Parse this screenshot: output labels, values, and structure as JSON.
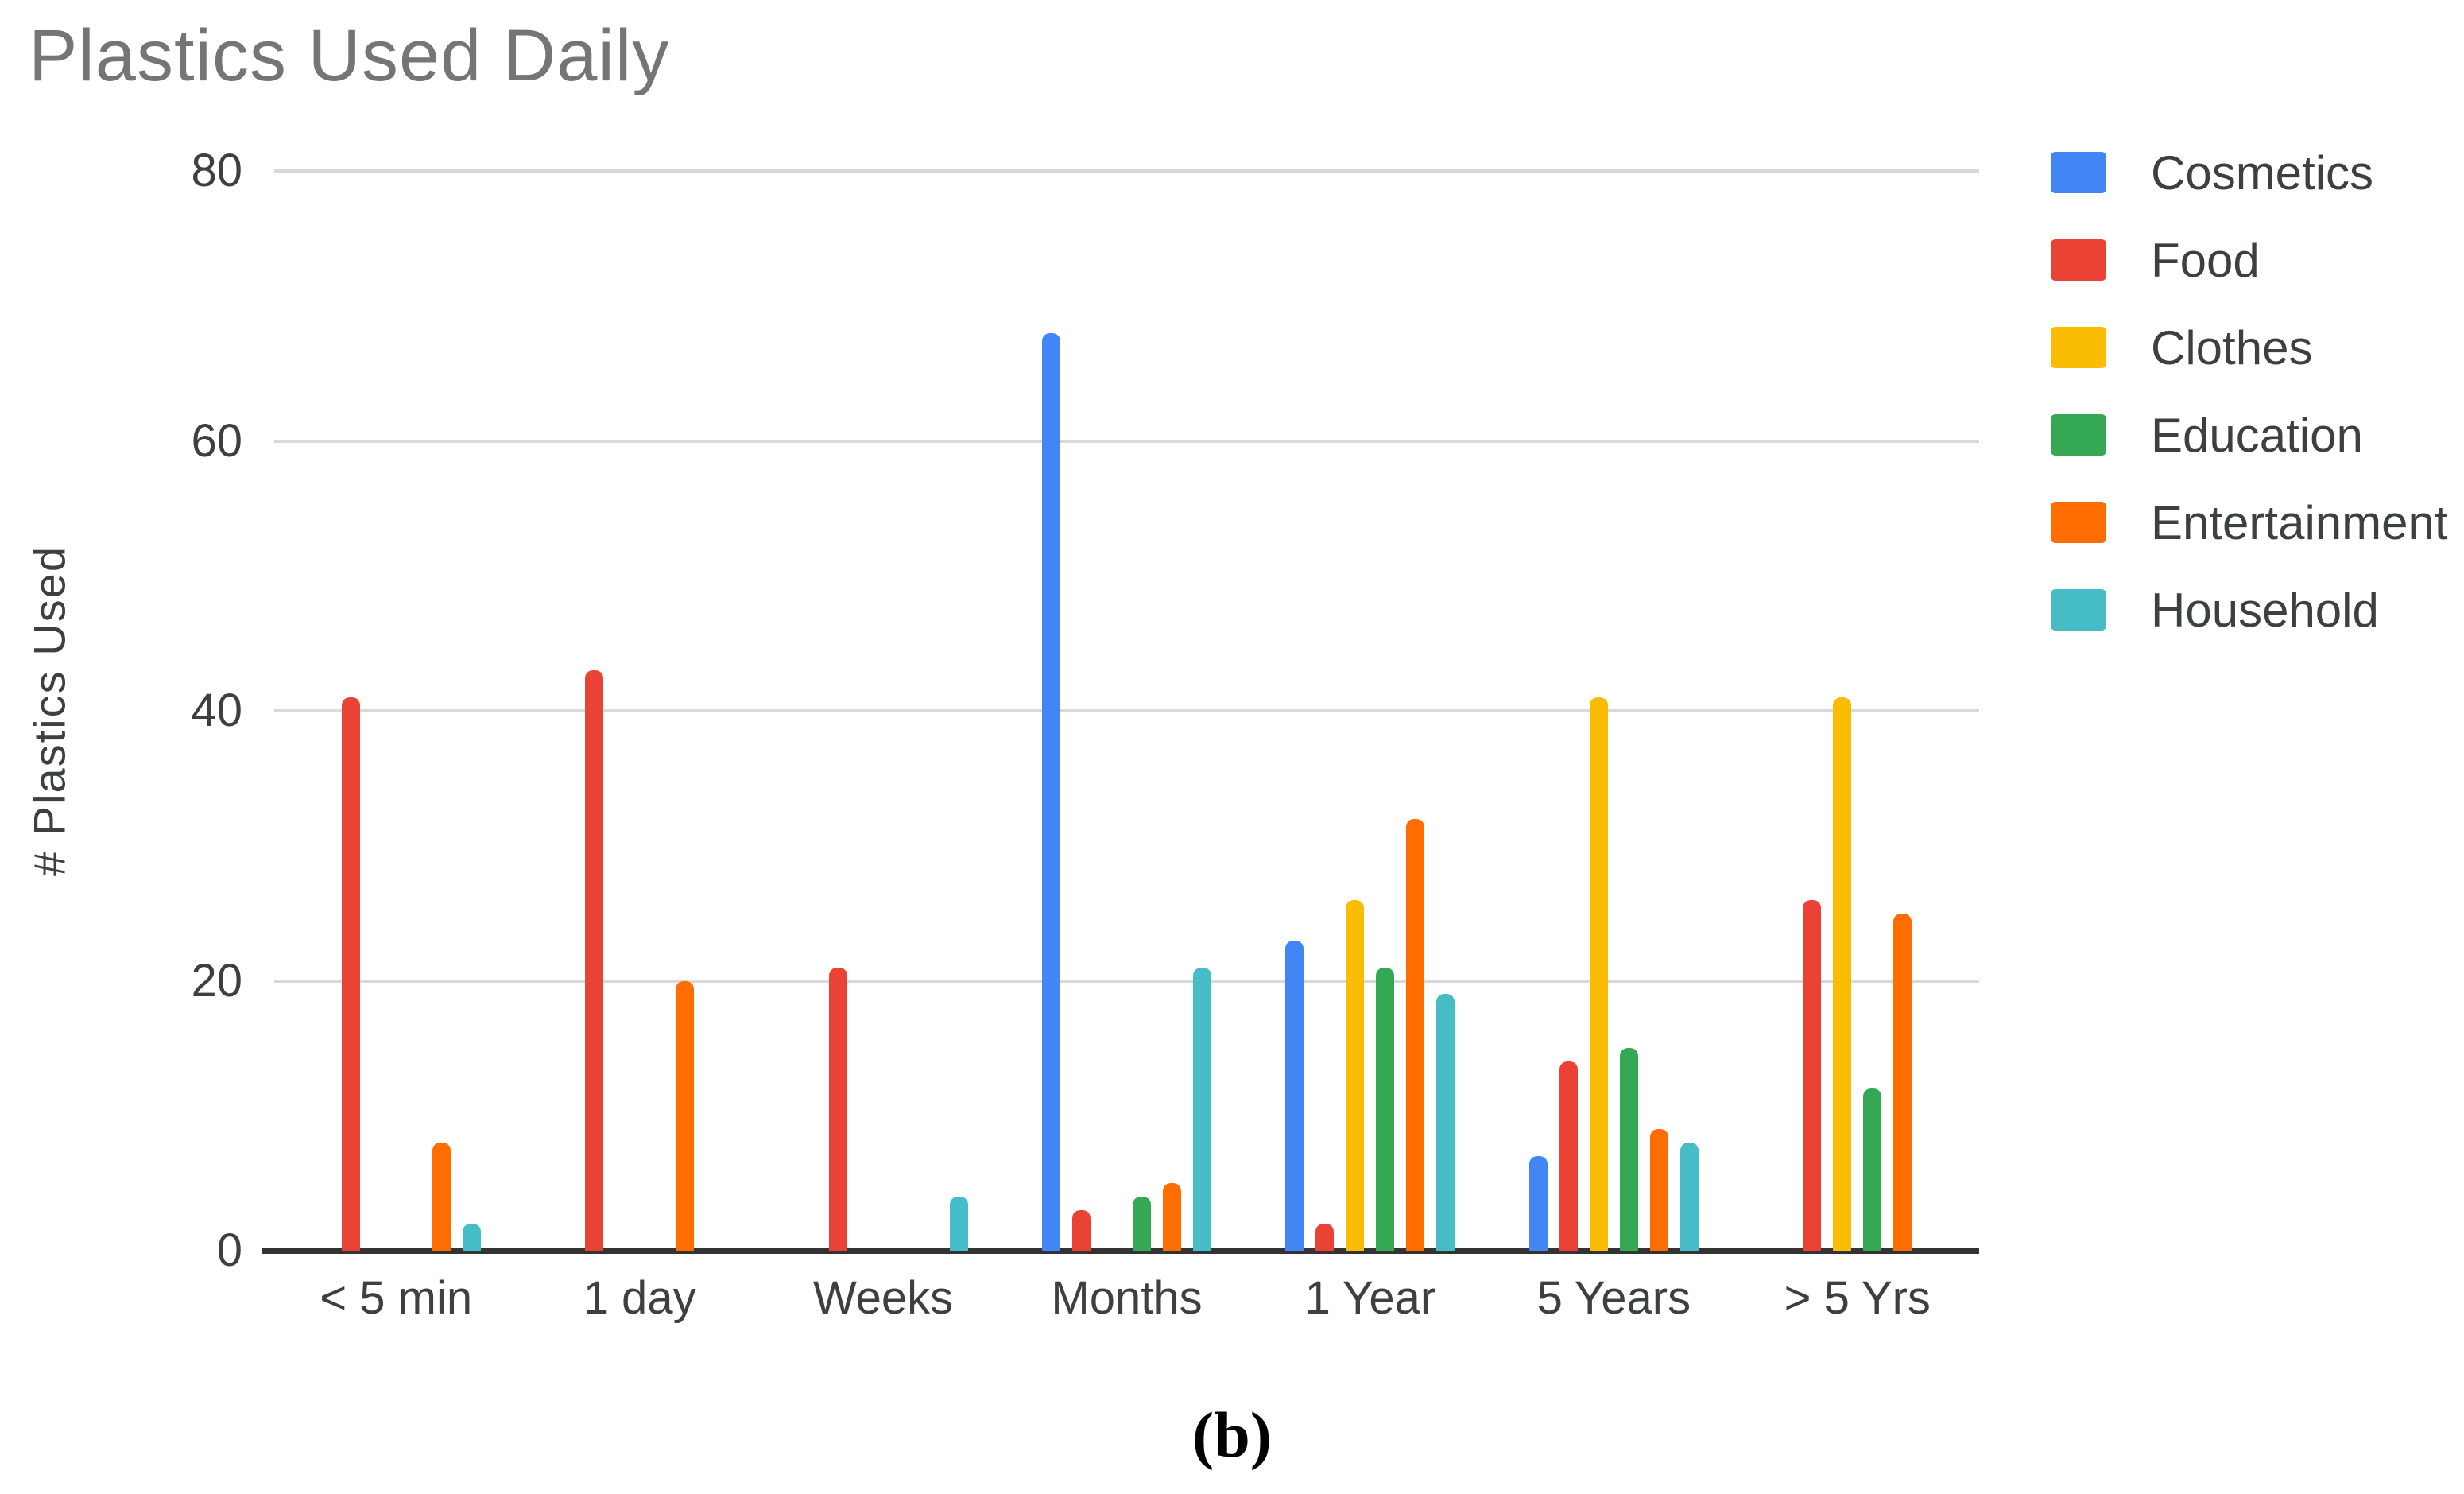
{
  "figure": {
    "caption": "(b)"
  },
  "chart_data": {
    "type": "bar",
    "title": "Plastics Used Daily",
    "xlabel": "",
    "ylabel": "# Plastics Used",
    "ylim": [
      0,
      80
    ],
    "yticks": [
      0,
      20,
      40,
      60,
      80
    ],
    "grid": true,
    "legend_position": "right",
    "categories": [
      "< 5 min",
      "1 day",
      "Weeks",
      "Months",
      "1 Year",
      "5 Years",
      "> 5 Yrs"
    ],
    "series": [
      {
        "name": "Cosmetics",
        "color": "#4285F4",
        "values": [
          0,
          0,
          0,
          68,
          23,
          7,
          0
        ]
      },
      {
        "name": "Food",
        "color": "#EA4335",
        "values": [
          41,
          43,
          21,
          3,
          2,
          14,
          26
        ]
      },
      {
        "name": "Clothes",
        "color": "#FBBC04",
        "values": [
          0,
          0,
          0,
          0,
          26,
          41,
          41
        ]
      },
      {
        "name": "Education",
        "color": "#34A853",
        "values": [
          0,
          0,
          0,
          4,
          21,
          15,
          12
        ]
      },
      {
        "name": "Entertainment",
        "color": "#FF6D01",
        "values": [
          8,
          20,
          0,
          5,
          32,
          9,
          25
        ]
      },
      {
        "name": "Household",
        "color": "#46BDC6",
        "values": [
          2,
          0,
          4,
          21,
          19,
          8,
          0
        ]
      }
    ],
    "colors": {
      "title_text": "#757575",
      "axis_text": "#3C4043",
      "gridline": "#D9D9D9",
      "axis_line": "#333333",
      "background": "#FFFFFF",
      "caption_text": "#000000"
    }
  }
}
